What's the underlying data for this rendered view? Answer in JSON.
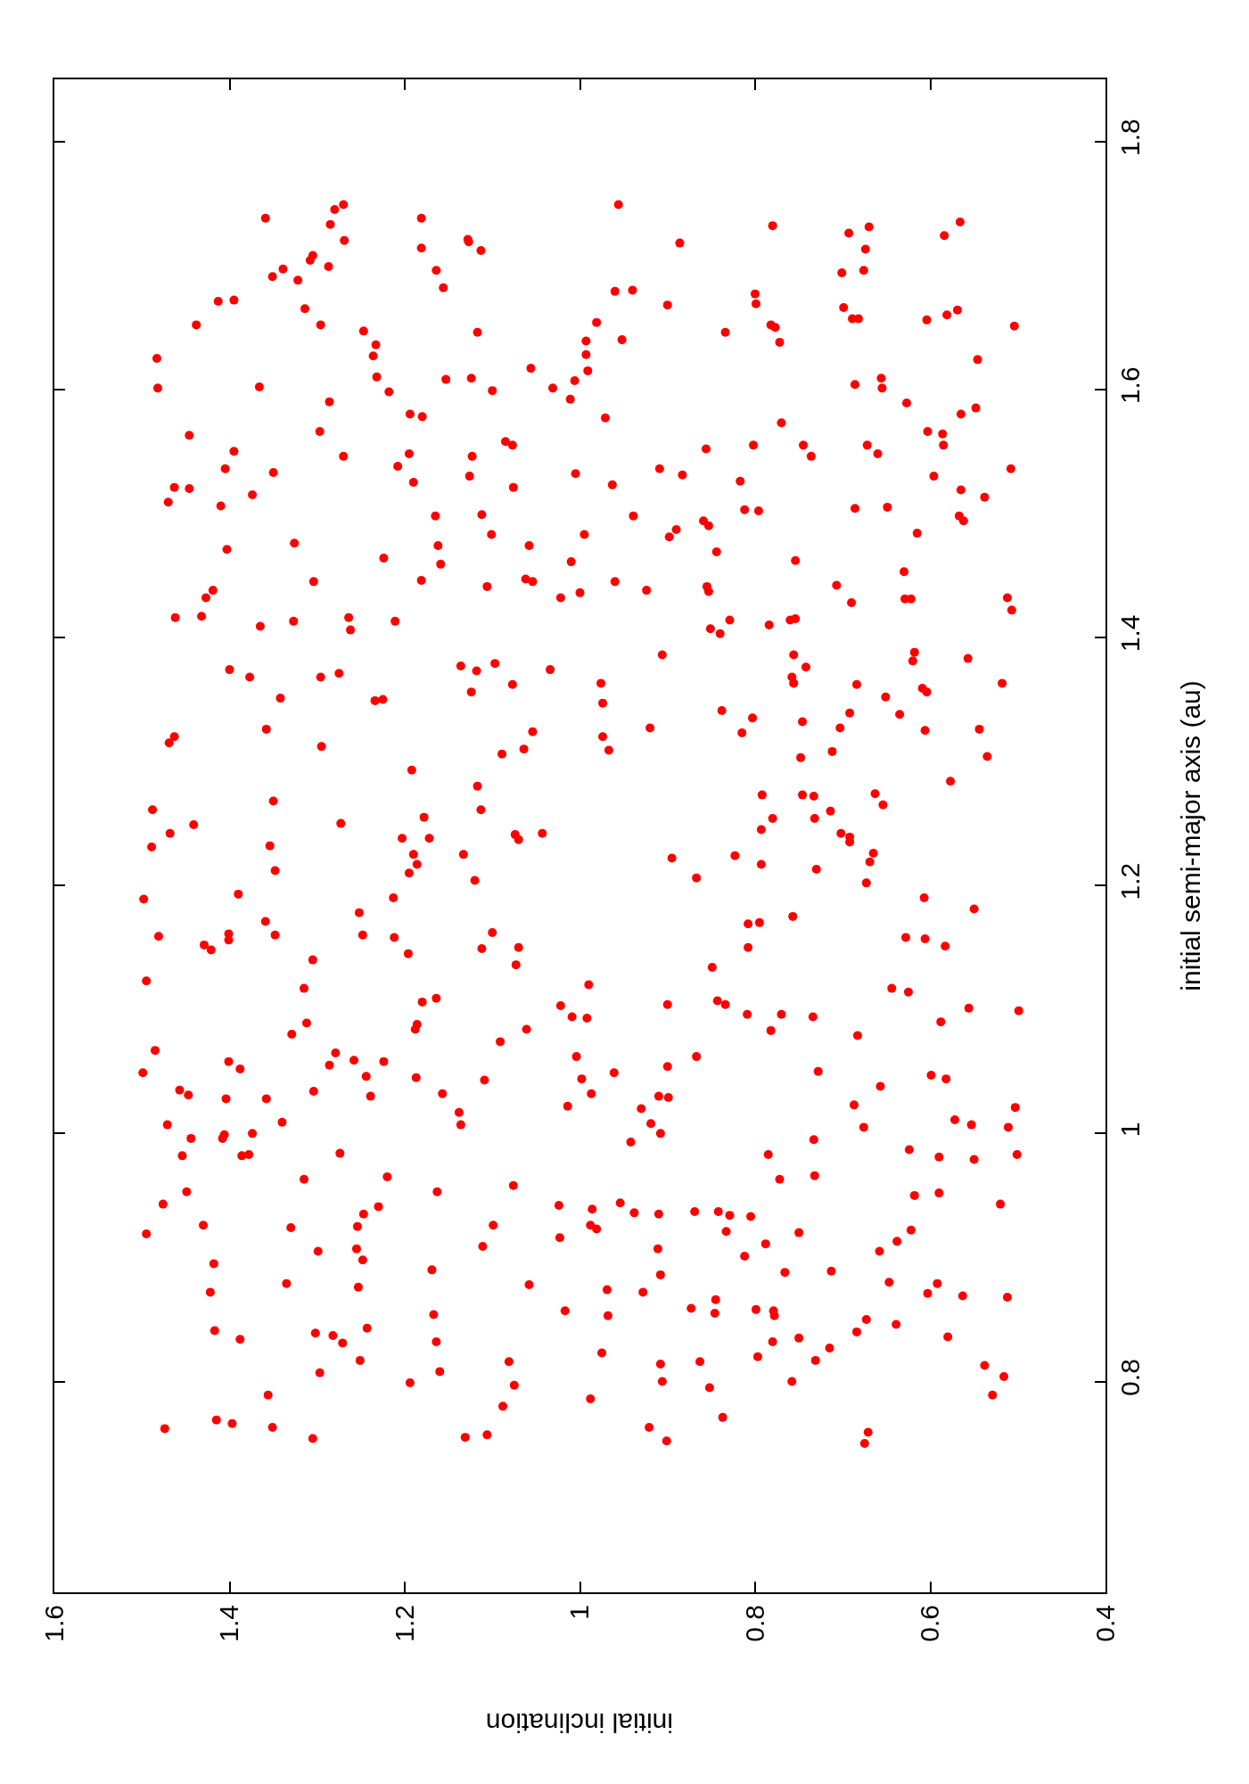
{
  "chart_data": {
    "type": "scatter",
    "xlabel": "initial inclination",
    "ylabel": "initial semi-major axis (au)",
    "xlim": [
      1.6,
      0.4
    ],
    "xticks": [
      1.6,
      1.4,
      1.2,
      1,
      0.8,
      0.6,
      0.4
    ],
    "ylim": [
      0.63,
      1.85
    ],
    "yticks": [
      0.8,
      1,
      1.2,
      1.4,
      1.6,
      1.8
    ],
    "marker": "circle",
    "series": [
      {
        "color": "#ff0000",
        "x": [
          1.27,
          1.28,
          1.359,
          1.285,
          1.269,
          1.181,
          1.128,
          1.127,
          1.113,
          1.181,
          1.164,
          1.156,
          1.305,
          1.308,
          1.287,
          1.339,
          1.351,
          1.322,
          1.413,
          1.395,
          1.314,
          1.438,
          1.296,
          1.247,
          1.233,
          1.236,
          1.232,
          1.218,
          1.483,
          1.482,
          1.366,
          1.286,
          1.117,
          1.153,
          1.124,
          1.1,
          1.056,
          1.031,
          1.006,
          1.011,
          0.993,
          0.993,
          0.991,
          1.194,
          1.18,
          1.297,
          1.446,
          1.395,
          1.27,
          1.195,
          1.208,
          1.19,
          1.123,
          1.126,
          1.085,
          1.077,
          1.076,
          1.005,
          1.405,
          1.35,
          1.463,
          1.446,
          1.47,
          1.41,
          1.374,
          1.165,
          1.112,
          1.101,
          1.162,
          1.159,
          1.058,
          0.995,
          1.01,
          1.403,
          1.326,
          1.224,
          1.304,
          1.181,
          1.106,
          1.062,
          1.054,
          1.022,
          1.0,
          1.419,
          1.427,
          0.956,
          0.78,
          0.886,
          0.693,
          0.67,
          0.674,
          0.701,
          0.676,
          0.566,
          0.584,
          0.96,
          0.94,
          0.9,
          0.8,
          0.799,
          0.699,
          0.689,
          0.682,
          0.604,
          0.581,
          0.569,
          0.504,
          0.981,
          0.952,
          0.834,
          0.782,
          0.777,
          0.772,
          0.546,
          0.686,
          0.656,
          0.655,
          0.627,
          0.565,
          0.548,
          0.971,
          0.77,
          0.856,
          0.802,
          0.745,
          0.736,
          0.672,
          0.66,
          0.603,
          0.586,
          0.585,
          0.508,
          0.909,
          0.883,
          0.963,
          0.817,
          0.596,
          0.565,
          0.538,
          0.939,
          0.812,
          0.796,
          0.859,
          0.853,
          0.89,
          0.898,
          0.686,
          0.649,
          0.567,
          0.562,
          0.615,
          0.844,
          0.754,
          0.63,
          0.96,
          0.924,
          0.855,
          0.853,
          0.707,
          0.69,
          0.629,
          0.622,
          0.512,
          0.507,
          1.462,
          1.432,
          1.365,
          1.327,
          1.264,
          1.262,
          1.211,
          1.4,
          1.377,
          1.296,
          1.275,
          1.342,
          1.234,
          1.225,
          1.136,
          1.118,
          1.097,
          1.034,
          1.077,
          1.124,
          1.463,
          1.469,
          1.358,
          1.295,
          1.054,
          1.064,
          1.089,
          1.192,
          1.117,
          1.488,
          1.35,
          1.441,
          1.468,
          1.489,
          1.273,
          1.178,
          1.203,
          1.172,
          1.113,
          1.074,
          1.07,
          1.043,
          1.354,
          1.348,
          1.19,
          1.186,
          1.195,
          1.133,
          1.12,
          1.498,
          1.39,
          1.213,
          1.252,
          1.359,
          1.481,
          1.429,
          1.421,
          1.401,
          1.401,
          1.348,
          1.248,
          1.212,
          1.196,
          1.1,
          1.112,
          1.07,
          1.073,
          1.305,
          1.495,
          1.315,
          1.18,
          1.164,
          1.186,
          1.188,
          0.99,
          1.022,
          1.009,
          0.992,
          1.061,
          1.091,
          1.312,
          1.329,
          0.829,
          0.851,
          0.84,
          0.784,
          0.76,
          0.754,
          0.906,
          0.756,
          0.742,
          0.758,
          0.756,
          0.618,
          0.62,
          0.557,
          0.976,
          0.974,
          0.684,
          0.651,
          0.609,
          0.604,
          0.518,
          0.838,
          0.803,
          0.815,
          0.746,
          0.692,
          0.703,
          0.635,
          0.606,
          0.544,
          0.92,
          0.974,
          0.967,
          0.748,
          0.712,
          0.535,
          0.577,
          0.792,
          0.746,
          0.733,
          0.663,
          0.654,
          0.714,
          0.78,
          0.732,
          0.793,
          0.702,
          0.692,
          0.692,
          0.665,
          0.669,
          0.673,
          0.895,
          0.823,
          0.793,
          0.73,
          0.867,
          0.607,
          0.55,
          0.757,
          0.808,
          0.795,
          0.808,
          0.628,
          0.606,
          0.583,
          0.849,
          0.644,
          0.625,
          0.556,
          0.499,
          0.588,
          0.9,
          0.843,
          0.834,
          0.809,
          0.77,
          0.734,
          0.782,
          0.683,
          1.485,
          1.499,
          1.401,
          1.388,
          1.279,
          1.286,
          1.258,
          1.224,
          1.244,
          1.187,
          1.109,
          1.004,
          0.998,
          0.987,
          1.014,
          1.457,
          1.447,
          1.404,
          1.358,
          1.304,
          1.239,
          1.157,
          1.138,
          1.136,
          1.471,
          1.444,
          1.406,
          1.408,
          1.374,
          1.34,
          1.454,
          1.386,
          1.378,
          1.274,
          1.315,
          1.22,
          1.163,
          1.076,
          1.449,
          1.476,
          1.23,
          1.247,
          1.254,
          1.43,
          1.33,
          1.495,
          1.024,
          0.986,
          0.988,
          1.099,
          1.111,
          1.023,
          1.299,
          1.255,
          1.248,
          1.418,
          1.169,
          1.335,
          1.253,
          1.422,
          1.058,
          1.167,
          1.017,
          1.417,
          1.388,
          1.302,
          1.282,
          1.271,
          1.243,
          1.164,
          1.251,
          1.297,
          1.16,
          1.194,
          1.081,
          1.075,
          1.088,
          0.988,
          1.356,
          1.415,
          1.397,
          1.351,
          1.474,
          1.305,
          1.131,
          1.106,
          0.867,
          0.9,
          0.961,
          0.728,
          0.91,
          0.899,
          0.93,
          0.919,
          0.908,
          0.942,
          0.657,
          0.687,
          0.676,
          0.599,
          0.582,
          0.503,
          0.572,
          0.553,
          0.511,
          0.501,
          0.733,
          0.785,
          0.772,
          0.732,
          0.624,
          0.59,
          0.55,
          0.618,
          0.59,
          0.52,
          0.954,
          0.938,
          0.91,
          0.869,
          0.842,
          0.829,
          0.805,
          0.981,
          0.833,
          0.75,
          0.788,
          0.812,
          0.911,
          0.622,
          0.638,
          0.658,
          0.908,
          0.766,
          0.713,
          0.647,
          0.592,
          0.603,
          0.563,
          0.512,
          0.969,
          0.928,
          0.968,
          0.873,
          0.845,
          0.846,
          0.799,
          0.779,
          0.778,
          0.673,
          0.684,
          0.639,
          0.58,
          0.78,
          0.75,
          0.715,
          0.731,
          0.797,
          0.975,
          0.908,
          0.906,
          0.863,
          0.852,
          0.758,
          0.538,
          0.516,
          0.529,
          0.837,
          0.921,
          0.901,
          0.671,
          0.675
        ],
        "values": [
          1.749,
          1.745,
          1.738,
          1.733,
          1.72,
          1.738,
          1.721,
          1.719,
          1.712,
          1.714,
          1.696,
          1.682,
          1.708,
          1.704,
          1.699,
          1.697,
          1.691,
          1.688,
          1.671,
          1.672,
          1.665,
          1.652,
          1.652,
          1.647,
          1.636,
          1.627,
          1.61,
          1.598,
          1.625,
          1.601,
          1.602,
          1.59,
          1.646,
          1.608,
          1.609,
          1.599,
          1.617,
          1.601,
          1.607,
          1.592,
          1.639,
          1.628,
          1.615,
          1.58,
          1.578,
          1.566,
          1.563,
          1.55,
          1.546,
          1.548,
          1.538,
          1.525,
          1.546,
          1.53,
          1.558,
          1.555,
          1.521,
          1.532,
          1.536,
          1.533,
          1.521,
          1.52,
          1.509,
          1.506,
          1.515,
          1.498,
          1.499,
          1.483,
          1.474,
          1.459,
          1.474,
          1.483,
          1.461,
          1.471,
          1.476,
          1.464,
          1.445,
          1.446,
          1.441,
          1.447,
          1.445,
          1.432,
          1.436,
          1.438,
          1.432,
          1.749,
          1.732,
          1.718,
          1.726,
          1.731,
          1.713,
          1.694,
          1.696,
          1.735,
          1.724,
          1.679,
          1.68,
          1.668,
          1.677,
          1.669,
          1.666,
          1.657,
          1.657,
          1.656,
          1.66,
          1.664,
          1.651,
          1.654,
          1.64,
          1.646,
          1.652,
          1.65,
          1.638,
          1.624,
          1.604,
          1.609,
          1.601,
          1.589,
          1.58,
          1.585,
          1.577,
          1.573,
          1.552,
          1.555,
          1.555,
          1.546,
          1.555,
          1.548,
          1.566,
          1.564,
          1.555,
          1.536,
          1.536,
          1.531,
          1.523,
          1.526,
          1.53,
          1.519,
          1.513,
          1.498,
          1.503,
          1.502,
          1.494,
          1.49,
          1.487,
          1.481,
          1.504,
          1.505,
          1.498,
          1.494,
          1.484,
          1.469,
          1.462,
          1.453,
          1.445,
          1.438,
          1.441,
          1.437,
          1.442,
          1.428,
          1.431,
          1.431,
          1.432,
          1.422,
          1.416,
          1.417,
          1.409,
          1.413,
          1.416,
          1.406,
          1.413,
          1.374,
          1.368,
          1.368,
          1.371,
          1.351,
          1.349,
          1.35,
          1.377,
          1.373,
          1.379,
          1.374,
          1.362,
          1.356,
          1.32,
          1.315,
          1.326,
          1.312,
          1.324,
          1.31,
          1.306,
          1.293,
          1.28,
          1.261,
          1.268,
          1.249,
          1.242,
          1.231,
          1.25,
          1.255,
          1.238,
          1.238,
          1.261,
          1.241,
          1.237,
          1.242,
          1.232,
          1.212,
          1.225,
          1.217,
          1.21,
          1.225,
          1.204,
          1.189,
          1.193,
          1.19,
          1.178,
          1.171,
          1.159,
          1.152,
          1.148,
          1.161,
          1.156,
          1.16,
          1.16,
          1.158,
          1.145,
          1.162,
          1.149,
          1.15,
          1.136,
          1.14,
          1.123,
          1.117,
          1.106,
          1.109,
          1.088,
          1.084,
          1.12,
          1.103,
          1.094,
          1.093,
          1.084,
          1.074,
          1.089,
          1.08,
          1.414,
          1.407,
          1.403,
          1.41,
          1.414,
          1.415,
          1.386,
          1.386,
          1.376,
          1.368,
          1.363,
          1.388,
          1.381,
          1.383,
          1.363,
          1.347,
          1.362,
          1.352,
          1.359,
          1.356,
          1.363,
          1.341,
          1.335,
          1.323,
          1.332,
          1.339,
          1.327,
          1.338,
          1.325,
          1.326,
          1.327,
          1.32,
          1.309,
          1.303,
          1.308,
          1.304,
          1.284,
          1.273,
          1.273,
          1.272,
          1.274,
          1.265,
          1.26,
          1.254,
          1.254,
          1.245,
          1.242,
          1.239,
          1.235,
          1.226,
          1.219,
          1.202,
          1.222,
          1.224,
          1.217,
          1.213,
          1.206,
          1.19,
          1.181,
          1.175,
          1.169,
          1.17,
          1.15,
          1.158,
          1.157,
          1.151,
          1.134,
          1.117,
          1.114,
          1.101,
          1.099,
          1.09,
          1.104,
          1.107,
          1.104,
          1.096,
          1.096,
          1.094,
          1.083,
          1.079,
          1.067,
          1.049,
          1.058,
          1.052,
          1.065,
          1.055,
          1.059,
          1.058,
          1.046,
          1.045,
          1.043,
          1.062,
          1.044,
          1.032,
          1.022,
          1.035,
          1.031,
          1.028,
          1.028,
          1.034,
          1.03,
          1.032,
          1.017,
          1.007,
          1.007,
          0.996,
          0.999,
          0.996,
          1.0,
          1.009,
          0.982,
          0.982,
          0.983,
          0.984,
          0.963,
          0.965,
          0.953,
          0.958,
          0.953,
          0.943,
          0.941,
          0.935,
          0.925,
          0.926,
          0.924,
          0.919,
          0.942,
          0.939,
          0.926,
          0.926,
          0.909,
          0.916,
          0.905,
          0.907,
          0.898,
          0.895,
          0.89,
          0.879,
          0.876,
          0.872,
          0.878,
          0.854,
          0.857,
          0.841,
          0.834,
          0.839,
          0.837,
          0.831,
          0.843,
          0.832,
          0.817,
          0.807,
          0.808,
          0.799,
          0.816,
          0.797,
          0.78,
          0.786,
          0.789,
          0.769,
          0.766,
          0.763,
          0.762,
          0.754,
          0.755,
          0.757,
          1.062,
          1.054,
          1.049,
          1.05,
          1.03,
          1.029,
          1.02,
          1.008,
          1.0,
          0.993,
          1.038,
          1.023,
          1.005,
          1.047,
          1.044,
          1.021,
          1.011,
          1.007,
          1.005,
          0.983,
          0.995,
          0.983,
          0.963,
          0.966,
          0.987,
          0.981,
          0.979,
          0.95,
          0.952,
          0.943,
          0.944,
          0.936,
          0.935,
          0.937,
          0.937,
          0.934,
          0.933,
          0.923,
          0.921,
          0.92,
          0.911,
          0.901,
          0.907,
          0.922,
          0.913,
          0.905,
          0.886,
          0.888,
          0.889,
          0.88,
          0.879,
          0.871,
          0.869,
          0.868,
          0.874,
          0.872,
          0.853,
          0.859,
          0.866,
          0.855,
          0.858,
          0.857,
          0.853,
          0.85,
          0.84,
          0.846,
          0.836,
          0.832,
          0.835,
          0.827,
          0.817,
          0.82,
          0.823,
          0.814,
          0.8,
          0.816,
          0.795,
          0.8,
          0.813,
          0.804,
          0.789,
          0.771,
          0.763,
          0.752,
          0.759,
          0.75
        ]
      }
    ]
  }
}
